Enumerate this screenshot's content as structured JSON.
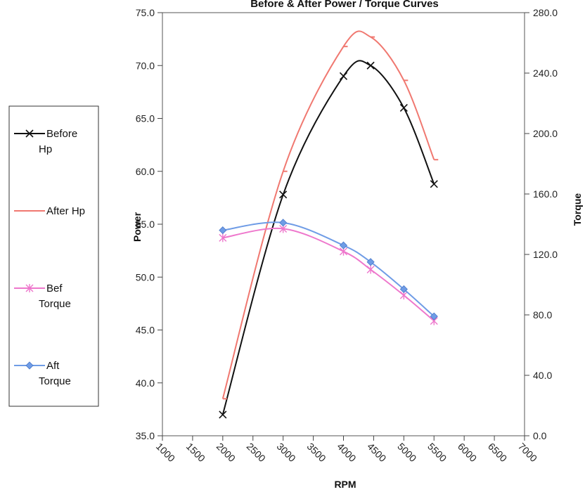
{
  "chart_data": {
    "type": "line",
    "title": "Before & After Power / Torque Curves",
    "xlabel": "RPM",
    "ylabel": "Power",
    "y2label": "Torque",
    "xlim": [
      1000,
      7000
    ],
    "ylim": [
      35,
      75
    ],
    "y2lim": [
      0,
      280
    ],
    "x_ticks": [
      "1000",
      "1500",
      "2000",
      "2500",
      "3000",
      "3500",
      "4000",
      "4500",
      "5000",
      "5500",
      "6000",
      "6500",
      "7000"
    ],
    "y_ticks": [
      "35.0",
      "40.0",
      "45.0",
      "50.0",
      "55.0",
      "60.0",
      "65.0",
      "70.0",
      "75.0"
    ],
    "y2_ticks": [
      "0.0",
      "40.0",
      "80.0",
      "120.0",
      "160.0",
      "200.0",
      "240.0",
      "280.0"
    ],
    "grid": false,
    "legend_position": "left",
    "series": [
      {
        "name_lines": [
          "Before",
          "Hp"
        ],
        "axis": "left",
        "color": "#111111",
        "marker": "x",
        "x": [
          2000,
          3000,
          4000,
          4450,
          5000,
          5500
        ],
        "values": [
          37.0,
          57.8,
          69.0,
          70.0,
          66.0,
          58.8
        ]
      },
      {
        "name_lines": [
          "After Hp"
        ],
        "axis": "left",
        "color": "#f07870",
        "marker": "dash",
        "x": [
          2000,
          3000,
          4000,
          4450,
          5000,
          5500
        ],
        "values": [
          38.5,
          60.0,
          71.8,
          72.7,
          68.6,
          61.1
        ]
      },
      {
        "name_lines": [
          "Bef",
          "Torque"
        ],
        "axis": "right",
        "color": "#ee77cc",
        "marker": "star",
        "x": [
          2000,
          3000,
          4000,
          4450,
          5000,
          5500
        ],
        "values": [
          131,
          137,
          122,
          110,
          93,
          76
        ]
      },
      {
        "name_lines": [
          "Aft",
          "Torque"
        ],
        "axis": "right",
        "color": "#6f9ce6",
        "marker": "diamond",
        "x": [
          2000,
          3000,
          4000,
          4450,
          5000,
          5500
        ],
        "values": [
          136,
          141,
          126,
          115,
          97,
          79
        ]
      }
    ]
  }
}
